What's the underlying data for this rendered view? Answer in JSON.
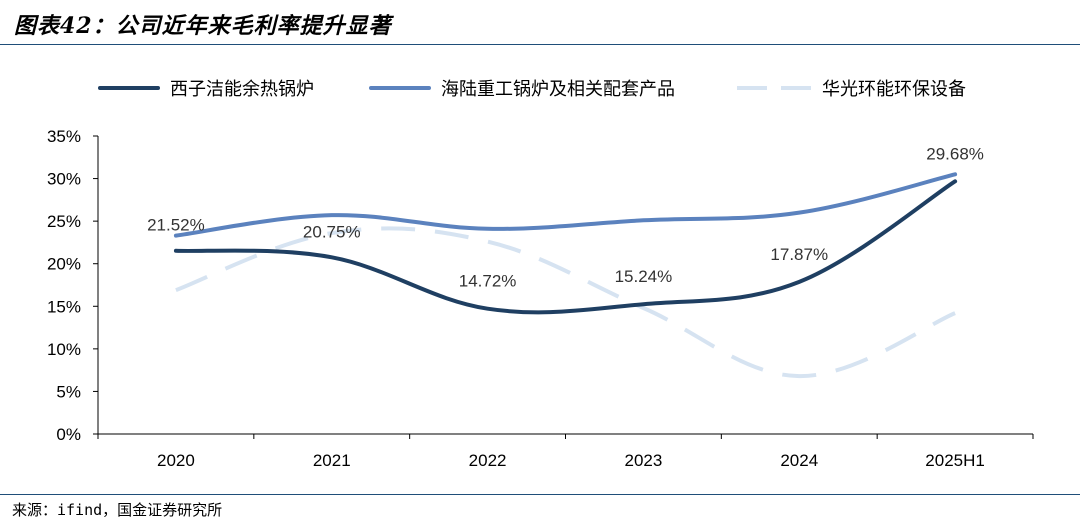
{
  "header": {
    "title": "图表42：公司近年来毛利率提升显著"
  },
  "footer": {
    "source": "来源：ifind，国金证券研究所"
  },
  "chart_data": {
    "type": "line",
    "title": "图表42：公司近年来毛利率提升显著",
    "categories": [
      "2020",
      "2021",
      "2022",
      "2023",
      "2024",
      "2025H1"
    ],
    "ylim": [
      0,
      35
    ],
    "yticks": [
      0,
      5,
      10,
      15,
      20,
      25,
      30,
      35
    ],
    "ytick_labels": [
      "0%",
      "5%",
      "10%",
      "15%",
      "20%",
      "25%",
      "30%",
      "35%"
    ],
    "xlabel": "",
    "ylabel": "",
    "legend_position": "top",
    "series": [
      {
        "name": "西子洁能余热锅炉",
        "values": [
          21.52,
          20.75,
          14.72,
          15.24,
          17.87,
          29.68
        ],
        "labels": [
          "21.52%",
          "20.75%",
          "14.72%",
          "15.24%",
          "17.87%",
          "29.68%"
        ],
        "color": "#1f3f62",
        "style": "solid"
      },
      {
        "name": "海陆重工锅炉及相关配套产品",
        "values": [
          23.3,
          25.7,
          24.1,
          25.1,
          26.0,
          30.5
        ],
        "color": "#5b82be",
        "style": "solid"
      },
      {
        "name": "华光环能环保设备",
        "values": [
          16.9,
          23.6,
          22.6,
          14.8,
          6.8,
          14.2
        ],
        "color": "#d6e3f1",
        "style": "dashed"
      }
    ]
  }
}
